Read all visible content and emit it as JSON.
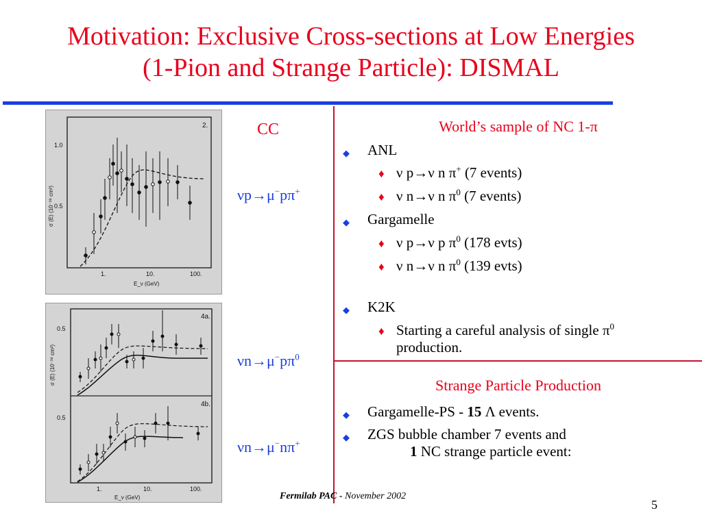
{
  "title": {
    "line1": "Motivation: Exclusive Cross-sections at Low Energies",
    "line2": "(1-Pion and Strange Particle):  DISMAL"
  },
  "left": {
    "cc_label": "CC",
    "reactions": [
      {
        "pre": "νp",
        "arrow": "→",
        "lep": "μ",
        "minus": "−",
        "had": "pπ",
        "charge": "+"
      },
      {
        "pre": "νn",
        "arrow": "→",
        "lep": "μ",
        "minus": "−",
        "had": "pπ",
        "charge": "0"
      },
      {
        "pre": "νn",
        "arrow": "→",
        "lep": "μ",
        "minus": "−",
        "had": "nπ",
        "charge": "+"
      }
    ],
    "plot1": {
      "panel_label": "2.",
      "y_ticks": [
        "1.0",
        "0.5"
      ],
      "x_ticks": [
        "1.",
        "10.",
        "100."
      ],
      "ylabel": "σ (E)  (10⁻³⁸ cm²)",
      "xlabel": "E_ν (GeV)"
    },
    "plot2": {
      "panel_top_label": "4a.",
      "panel_bottom_label": "4b.",
      "y_ticks": [
        "0.5",
        "0.5"
      ],
      "x_ticks": [
        "1.",
        "10.",
        "100."
      ],
      "ylabel": "σ (E)  (10⁻³⁸ cm²)",
      "xlabel": "E_ν (GeV)"
    }
  },
  "nc": {
    "title": "World’s sample of NC 1-π",
    "items": [
      {
        "text": "ANL",
        "sub": [
          {
            "a": "ν p→ν n π",
            "sup": "+",
            "b": " (7 events)"
          },
          {
            "a": "ν n→ν n π",
            "sup": "0",
            "b": " (7 events)"
          }
        ]
      },
      {
        "text": "Gargamelle",
        "sub": [
          {
            "a": "ν p→ν p π",
            "sup": "0",
            "b": " (178 evts)"
          },
          {
            "a": "ν n→ν n π",
            "sup": "0",
            "b": " (139 evts)"
          }
        ]
      },
      {
        "text": "K2K",
        "sub": [
          {
            "a": "Starting a careful analysis of single π",
            "sup": "0",
            "b": "",
            "line2": "production."
          }
        ]
      }
    ]
  },
  "strange": {
    "title": "Strange Particle Production",
    "items": [
      {
        "pre": "Gargamelle-PS - ",
        "bold": "15",
        "post": " Λ events."
      },
      {
        "pre": "ZGS bubble chamber 7 events  and",
        "bold2": "1",
        "post2": " NC strange particle event:"
      }
    ]
  },
  "footer": {
    "bold": "Fermilab PAC - ",
    "rest": " November 2002"
  },
  "page_number": "5",
  "colors": {
    "title": "#e8001c",
    "rule": "#1a3fe0",
    "divider": "#c8102e",
    "reaction": "#1a3fe0"
  }
}
